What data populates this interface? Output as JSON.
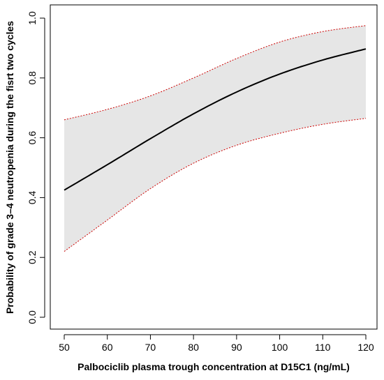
{
  "chart_data": {
    "type": "line",
    "title": "",
    "xlabel": "Palbociclib plasma trough concentration at D15C1 (ng/mL)",
    "ylabel": "Probability of grade 3–4 neutropenia during the fisrt two cycles",
    "xlim": [
      50,
      120
    ],
    "ylim": [
      0.0,
      1.0
    ],
    "x_ticks": [
      "50",
      "60",
      "70",
      "80",
      "90",
      "100",
      "110",
      "120"
    ],
    "y_ticks": [
      "0.0",
      "0.2",
      "0.4",
      "0.6",
      "0.8",
      "1.0"
    ],
    "grid": false,
    "legend": "none",
    "x": [
      50,
      60,
      70,
      80,
      90,
      100,
      110,
      120
    ],
    "series": [
      {
        "role": "estimate",
        "values": [
          0.425,
          0.51,
          0.597,
          0.68,
          0.753,
          0.813,
          0.86,
          0.897
        ],
        "color": "#000000",
        "style": "solid"
      },
      {
        "role": "upper-ci",
        "values": [
          0.66,
          0.695,
          0.74,
          0.8,
          0.865,
          0.92,
          0.955,
          0.975
        ],
        "color": "#cc0000",
        "style": "dotted"
      },
      {
        "role": "lower-ci",
        "values": [
          0.22,
          0.325,
          0.43,
          0.515,
          0.575,
          0.615,
          0.645,
          0.665
        ],
        "color": "#cc0000",
        "style": "dotted"
      }
    ],
    "band_fill": "#e6e6e6"
  }
}
